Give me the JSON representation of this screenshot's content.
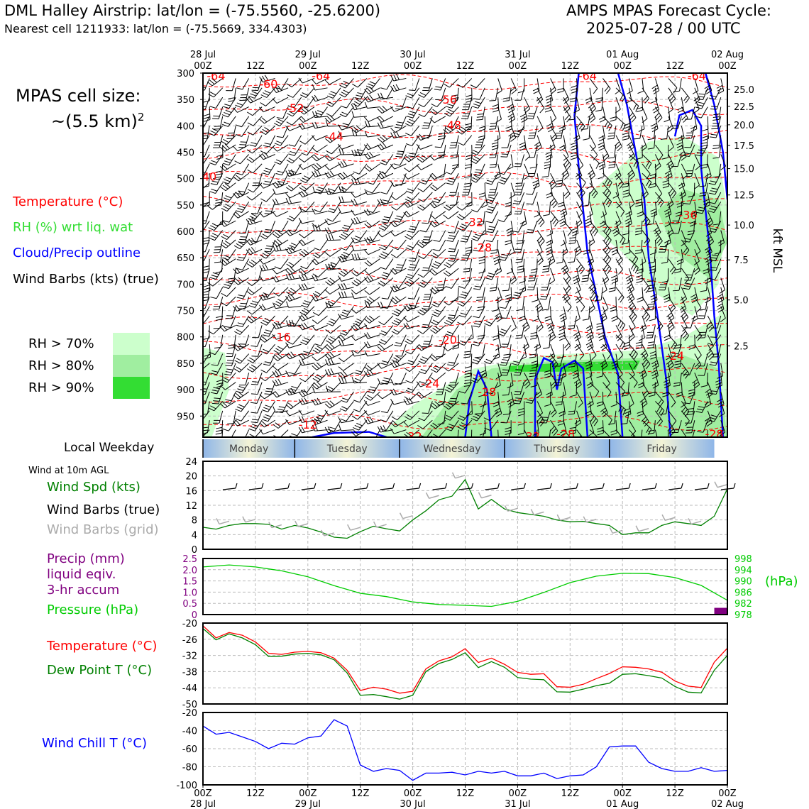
{
  "header": {
    "title_left": "DML Halley Airstrip: lat/lon = (-75.5560, -25.6200)",
    "subtitle_left": "Nearest cell 1211933: lat/lon = (-75.5669, 334.4303)",
    "title_right_1": "AMPS MPAS Forecast Cycle:",
    "title_right_2": "2025-07-28 / 00 UTC"
  },
  "legend_left": {
    "cell_size_1": "MPAS cell size:",
    "cell_size_2": "~(5.5 km)",
    "cell_size_sup": "2",
    "temperature": "Temperature (°C)",
    "rh": "RH (%) wrt liq. wat",
    "cloud": "Cloud/Precip outline",
    "wind": "Wind Barbs (kts) (true)",
    "rh70": "RH > 70%",
    "rh80": "RH > 80%",
    "rh90": "RH > 90%"
  },
  "colors": {
    "temperature": "#ff0000",
    "rh": "#33dd33",
    "cloud": "#0000ff",
    "wind": "#000000",
    "wind_grid": "#aaaaaa",
    "precip": "#800080",
    "pressure": "#00cc00",
    "windspd": "#008000",
    "dewpoint": "#008000",
    "windchill": "#0000ff",
    "rh70": "#ccffcc",
    "rh80": "#a0eea0",
    "rh90": "#33dd33"
  },
  "weekday": {
    "title": "Local Weekday",
    "days": [
      "Monday",
      "Tuesday",
      "Wednesday",
      "Thursday",
      "Friday"
    ]
  },
  "time_axis": {
    "hours": [
      "00Z",
      "12Z",
      "00Z",
      "12Z",
      "00Z",
      "12Z",
      "00Z",
      "12Z",
      "00Z",
      "12Z",
      "00Z"
    ],
    "dates": [
      "28 Jul",
      "",
      "29 Jul",
      "",
      "30 Jul",
      "",
      "31 Jul",
      "",
      "01 Aug",
      "",
      "02 Aug"
    ]
  },
  "chart_data": [
    {
      "type": "heatmap",
      "name": "upper-air time-height section",
      "x_hours": [
        0,
        120
      ],
      "yaxis_pressure_ticks": [
        300,
        350,
        400,
        450,
        500,
        550,
        600,
        650,
        700,
        750,
        800,
        850,
        900,
        950
      ],
      "ylim_hpa": [
        300,
        990
      ],
      "right_axis_label": "kft MSL",
      "right_axis_ticks": [
        "25.0",
        "22.5",
        "20.0",
        "17.5",
        "15.0",
        "12.5",
        "10.0",
        "7.5",
        "5.0",
        "2.5"
      ],
      "right_axis_tick_pressures": [
        331,
        363,
        398,
        437,
        481,
        531,
        588,
        654,
        730,
        817
      ],
      "temperature_contour_labels": [
        {
          "text": "-64",
          "t": 3,
          "p": 305
        },
        {
          "text": "-60",
          "t": 15,
          "p": 320
        },
        {
          "text": "-64",
          "t": 27,
          "p": 305
        },
        {
          "text": "-52",
          "t": 21,
          "p": 366
        },
        {
          "text": "-56",
          "t": 56,
          "p": 350
        },
        {
          "text": "-44",
          "t": 30,
          "p": 420
        },
        {
          "text": "-48",
          "t": 57,
          "p": 398
        },
        {
          "text": "-64",
          "t": 88,
          "p": 305
        },
        {
          "text": "-64",
          "t": 113,
          "p": 305
        },
        {
          "text": "-40",
          "t": 1,
          "p": 496
        },
        {
          "text": "-32",
          "t": 62,
          "p": 582
        },
        {
          "text": "-28",
          "t": 64,
          "p": 630
        },
        {
          "text": "-36",
          "t": 111,
          "p": 568
        },
        {
          "text": "-16",
          "t": 18,
          "p": 800
        },
        {
          "text": "-20",
          "t": 56,
          "p": 805
        },
        {
          "text": "-24",
          "t": 52,
          "p": 888
        },
        {
          "text": "-28",
          "t": 65,
          "p": 904
        },
        {
          "text": "-24",
          "t": 108,
          "p": 835
        },
        {
          "text": "-12",
          "t": 24,
          "p": 966
        },
        {
          "text": "-32",
          "t": 48,
          "p": 988
        },
        {
          "text": "-32",
          "t": 75,
          "p": 988
        },
        {
          "text": "-28",
          "t": 83,
          "p": 983
        },
        {
          "text": "-28",
          "t": 117,
          "p": 983
        }
      ],
      "rh": "shaded >70/80/90%",
      "cloud_outline": "blue contours",
      "wind_barbs": "kts, true direction"
    },
    {
      "type": "line",
      "name": "10m wind",
      "title": "Wind at 10m AGL",
      "series_label": "Wind Spd (kts)",
      "barbs_true_label": "Wind Barbs (true)",
      "barbs_grid_label": "Wind Barbs (grid)",
      "ylim": [
        0,
        24
      ],
      "yticks": [
        0,
        4,
        8,
        12,
        16,
        20,
        24
      ],
      "x_hours": [
        0,
        3,
        6,
        9,
        12,
        15,
        18,
        21,
        24,
        27,
        30,
        33,
        36,
        39,
        42,
        45,
        48,
        51,
        54,
        57,
        60,
        63,
        66,
        69,
        72,
        75,
        78,
        81,
        84,
        87,
        90,
        93,
        96,
        99,
        102,
        105,
        108,
        111,
        114,
        117,
        120
      ],
      "values": [
        6,
        5.5,
        6.5,
        7,
        7,
        6.8,
        5.5,
        6.5,
        5.8,
        4.7,
        3.3,
        3,
        4.8,
        6.3,
        5.6,
        5,
        8,
        10.5,
        13.5,
        14.5,
        19,
        11,
        13.6,
        11,
        10,
        9.5,
        9,
        8,
        7.5,
        7.6,
        7,
        6.5,
        4,
        4.5,
        4.5,
        6.5,
        7.5,
        7,
        6.5,
        9,
        16.5
      ]
    },
    {
      "type": "line",
      "name": "precip and pressure",
      "precip_label": "Precip (mm)",
      "precip_label_2": "liquid eqiv.",
      "precip_label_3": "3-hr accum",
      "pressure_label": "Pressure (hPa)",
      "pressure_unit": "(hPa)",
      "precip_ylim": [
        0,
        2.5
      ],
      "precip_yticks": [
        "0",
        "0.5",
        "1.0",
        "1.5",
        "2.0",
        "2.5"
      ],
      "pressure_ylim": [
        978,
        998
      ],
      "pressure_yticks": [
        "978",
        "982",
        "986",
        "990",
        "994",
        "998"
      ],
      "precip_bars": [
        {
          "t": 120,
          "v": 0.3
        }
      ],
      "x_hours": [
        0,
        6,
        12,
        18,
        24,
        30,
        36,
        42,
        48,
        54,
        60,
        66,
        72,
        78,
        84,
        90,
        96,
        102,
        108,
        114,
        120
      ],
      "pressure": [
        995,
        995.7,
        995,
        993.6,
        991.5,
        988.3,
        985.6,
        984.4,
        982.5,
        981.6,
        981.3,
        980.9,
        982.7,
        985.9,
        989.4,
        991.7,
        992.7,
        992.6,
        991.2,
        988.4,
        983.1
      ]
    },
    {
      "type": "line",
      "name": "temperature and dew point",
      "temperature_label": "Temperature (°C)",
      "dewpoint_label": "Dew Point T (°C)",
      "ylim": [
        -50,
        -20
      ],
      "yticks": [
        -50,
        -44,
        -38,
        -32,
        -26,
        -20
      ],
      "x_hours": [
        0,
        3,
        6,
        9,
        12,
        15,
        18,
        21,
        24,
        27,
        30,
        33,
        36,
        39,
        42,
        45,
        48,
        51,
        54,
        57,
        60,
        63,
        66,
        69,
        72,
        75,
        78,
        81,
        84,
        87,
        90,
        93,
        96,
        99,
        102,
        105,
        108,
        111,
        114,
        117,
        120
      ],
      "temperature": [
        -21,
        -25.5,
        -23.5,
        -24.5,
        -27,
        -31.2,
        -31.6,
        -30.8,
        -30.5,
        -31,
        -33,
        -37.5,
        -45,
        -43.8,
        -44.5,
        -46,
        -45.3,
        -37,
        -34,
        -32.5,
        -29.5,
        -34.6,
        -33,
        -35.3,
        -38.3,
        -39,
        -38.8,
        -43.6,
        -43.8,
        -42.7,
        -40.6,
        -38.7,
        -36.2,
        -36.4,
        -37,
        -38.2,
        -41.5,
        -43.4,
        -43.9,
        -34.5,
        -29.3
      ],
      "dewpoint": [
        -22,
        -26.2,
        -24,
        -25.5,
        -28,
        -32.4,
        -32.3,
        -31.5,
        -31.2,
        -31.8,
        -33.6,
        -38.5,
        -46.8,
        -46.5,
        -47.3,
        -48.2,
        -46.8,
        -38,
        -35,
        -33.5,
        -31,
        -36.5,
        -34.3,
        -36.4,
        -40.2,
        -40.8,
        -41,
        -45.5,
        -45.6,
        -44.5,
        -43.2,
        -42.3,
        -39,
        -38.8,
        -39.5,
        -40.4,
        -43.5,
        -45.6,
        -45.9,
        -37.5,
        -32
      ]
    },
    {
      "type": "line",
      "name": "wind chill",
      "label": "Wind Chill T (°C)",
      "ylim": [
        -100,
        -20
      ],
      "yticks": [
        -100,
        -80,
        -60,
        -40,
        -20
      ],
      "x_hours": [
        0,
        3,
        6,
        9,
        12,
        15,
        18,
        21,
        24,
        27,
        30,
        33,
        36,
        39,
        42,
        45,
        48,
        51,
        54,
        57,
        60,
        63,
        66,
        69,
        72,
        75,
        78,
        81,
        84,
        87,
        90,
        93,
        96,
        99,
        102,
        105,
        108,
        111,
        114,
        117,
        120
      ],
      "values": [
        -35,
        -44,
        -42,
        -47,
        -52,
        -60,
        -54,
        -55,
        -48,
        -46,
        -28,
        -35,
        -78,
        -85,
        -82,
        -84,
        -95,
        -87,
        -87,
        -86,
        -89,
        -85,
        -87,
        -85,
        -90,
        -90,
        -87,
        -93,
        -90,
        -89,
        -80,
        -58,
        -57,
        -57,
        -75,
        -82,
        -85,
        -85,
        -81,
        -85,
        -84
      ]
    }
  ]
}
